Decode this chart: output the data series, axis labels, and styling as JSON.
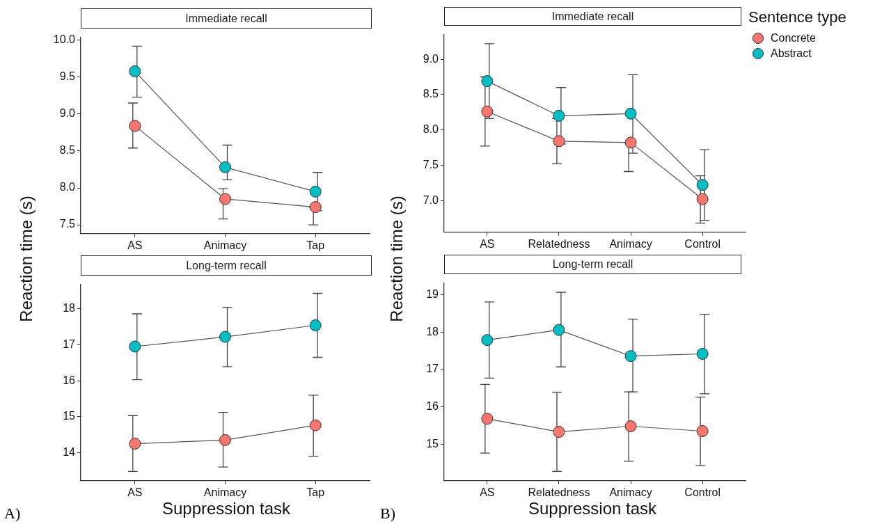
{
  "chart_data": [
    {
      "type": "line",
      "title": "Immediate recall",
      "ylabel": "Reaction time (s)",
      "categories": [
        "AS",
        "Animacy",
        "Tap"
      ],
      "ylim": [
        7.38,
        10.04
      ],
      "yticks": [
        7.5,
        {
          "value": 8,
          "label": "8.0"
        },
        8.5,
        {
          "value": 9,
          "label": "9.0"
        },
        9.5,
        {
          "value": 10,
          "label": "10.0"
        }
      ],
      "marker": "circle",
      "line_style": "solid",
      "grid": false,
      "series": [
        {
          "color": "#f8766d",
          "values": [
            8.84,
            7.85,
            7.74
          ],
          "errors": [
            [
              8.54,
              9.15
            ],
            [
              7.58,
              7.99
            ],
            [
              7.5,
              7.74
            ]
          ]
        },
        {
          "color": "#00bfc4",
          "values": [
            9.58,
            8.28,
            7.95
          ],
          "errors": [
            [
              9.23,
              9.92
            ],
            [
              8.11,
              8.58
            ],
            [
              7.69,
              8.21
            ]
          ]
        }
      ]
    },
    {
      "type": "line",
      "title": "Immediate recall",
      "ylabel": "Reaction time (s)",
      "legend_title": "Sentence type",
      "legend": "right",
      "categories": [
        "AS",
        "Relatedness",
        "Animacy",
        "Control"
      ],
      "ylim": [
        6.55,
        9.35
      ],
      "yticks": [
        {
          "value": 7,
          "label": "7.0"
        },
        7.5,
        {
          "value": 8,
          "label": "8.0"
        },
        8.5,
        {
          "value": 9,
          "label": "9.0"
        }
      ],
      "marker": "circle",
      "line_style": "solid",
      "grid": false,
      "series": [
        {
          "name": "Concrete",
          "color": "#f8766d",
          "values": [
            8.26,
            7.84,
            7.82,
            7.02
          ],
          "errors": [
            [
              7.77,
              8.75
            ],
            [
              7.52,
              8.16
            ],
            [
              7.41,
              7.82
            ],
            [
              6.68,
              7.35
            ]
          ]
        },
        {
          "name": "Abstract",
          "color": "#00bfc4",
          "values": [
            8.69,
            8.2,
            8.23,
            7.22
          ],
          "errors": [
            [
              8.16,
              9.22
            ],
            [
              7.8,
              8.6
            ],
            [
              7.67,
              8.78
            ],
            [
              6.72,
              7.72
            ]
          ]
        }
      ]
    },
    {
      "type": "line",
      "title": "Long-term recall",
      "xlabel": "Suppression task",
      "annotations": [
        "A)"
      ],
      "categories": [
        "AS",
        "Animacy",
        "Tap"
      ],
      "ylim": [
        13.22,
        18.68
      ],
      "yticks": [
        14,
        15,
        16,
        17,
        18
      ],
      "marker": "circle",
      "line_style": "solid",
      "grid": false,
      "series": [
        {
          "color": "#f8766d",
          "values": [
            14.25,
            14.35,
            14.76
          ],
          "errors": [
            [
              13.48,
              15.03
            ],
            [
              13.6,
              15.12
            ],
            [
              13.9,
              15.6
            ]
          ]
        },
        {
          "color": "#00bfc4",
          "values": [
            16.95,
            17.22,
            17.54
          ],
          "errors": [
            [
              16.03,
              17.86
            ],
            [
              16.39,
              18.04
            ],
            [
              16.65,
              18.43
            ]
          ]
        }
      ]
    },
    {
      "type": "line",
      "title": "Long-term recall",
      "xlabel": "Suppression task",
      "annotations": [
        "B)"
      ],
      "categories": [
        "AS",
        "Relatedness",
        "Animacy",
        "Control"
      ],
      "ylim": [
        14.02,
        19.32
      ],
      "yticks": [
        15,
        16,
        17,
        18,
        19
      ],
      "marker": "circle",
      "line_style": "solid",
      "grid": false,
      "series": [
        {
          "color": "#f8766d",
          "values": [
            15.68,
            15.33,
            15.48,
            15.35
          ],
          "errors": [
            [
              14.76,
              16.6
            ],
            [
              14.27,
              16.39
            ],
            [
              14.54,
              16.4
            ],
            [
              14.43,
              16.26
            ]
          ]
        },
        {
          "color": "#00bfc4",
          "values": [
            17.79,
            18.06,
            17.36,
            17.42
          ],
          "errors": [
            [
              16.77,
              18.81
            ],
            [
              17.07,
              19.07
            ],
            [
              16.4,
              18.35
            ],
            [
              16.35,
              18.48
            ]
          ]
        }
      ]
    }
  ]
}
